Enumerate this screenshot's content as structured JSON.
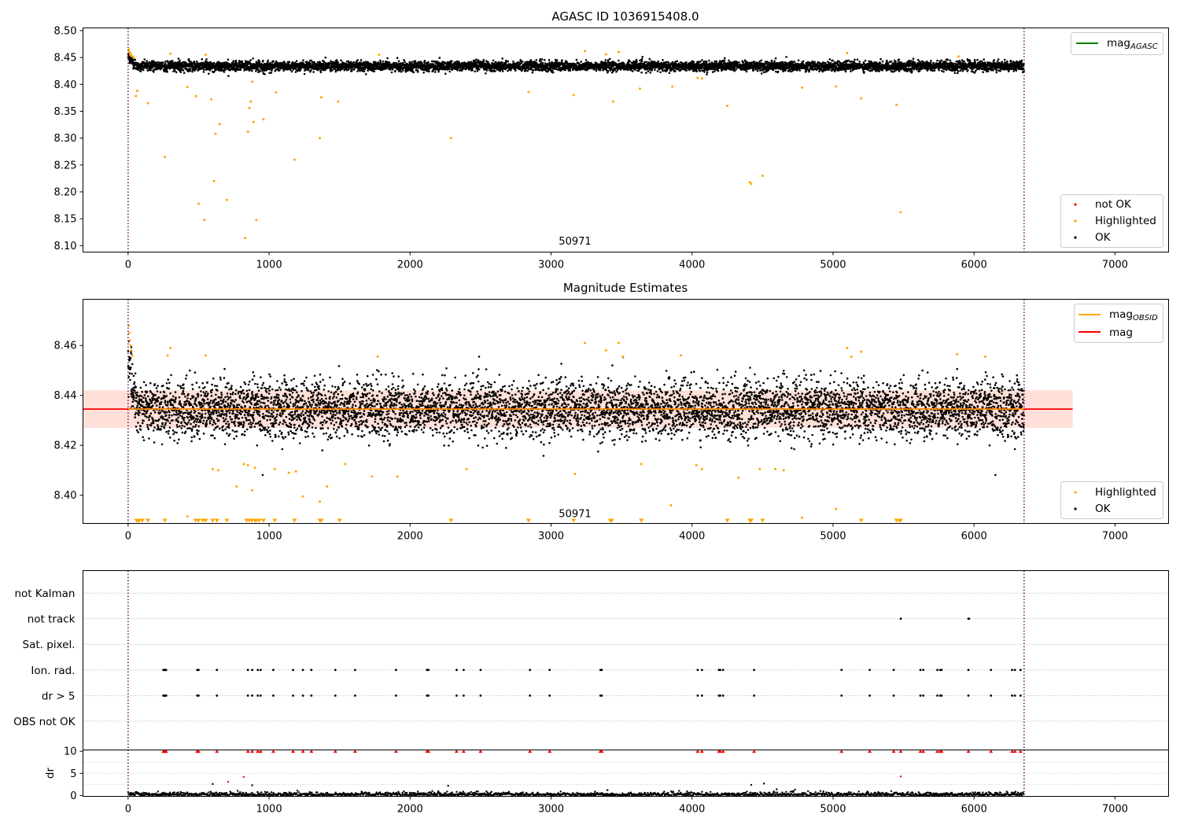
{
  "chart_data": [
    {
      "type": "scatter",
      "title": "AGASC ID 1036915408.0",
      "xlim": [
        -320,
        7380
      ],
      "ylim": [
        8.088,
        8.505
      ],
      "x_ticks": [
        0,
        1000,
        2000,
        3000,
        4000,
        5000,
        6000,
        7000
      ],
      "y_ticks": [
        8.1,
        8.15,
        8.2,
        8.25,
        8.3,
        8.35,
        8.4,
        8.45,
        8.5
      ],
      "obsid_label": {
        "text": "50971",
        "x": 3170,
        "y": 8.108
      },
      "obs_boundaries": [
        0,
        6355
      ],
      "ok_band": {
        "x_range": [
          0,
          6355
        ],
        "center": 8.434,
        "spread": 0.009,
        "early_offset": 0.018
      },
      "series": [
        {
          "name": "OK",
          "color": "#000000",
          "count": 6400
        },
        {
          "name": "Highlighted",
          "color": "#FFA500",
          "points": [
            [
              5,
              8.465
            ],
            [
              10,
              8.46
            ],
            [
              15,
              8.458
            ],
            [
              20,
              8.455
            ],
            [
              30,
              8.452
            ],
            [
              40,
              8.45
            ],
            [
              55,
              8.378
            ],
            [
              65,
              8.388
            ],
            [
              140,
              8.365
            ],
            [
              260,
              8.265
            ],
            [
              300,
              8.457
            ],
            [
              420,
              8.395
            ],
            [
              480,
              8.378
            ],
            [
              500,
              8.178
            ],
            [
              540,
              8.148
            ],
            [
              550,
              8.455
            ],
            [
              590,
              8.372
            ],
            [
              610,
              8.22
            ],
            [
              620,
              8.308
            ],
            [
              650,
              8.326
            ],
            [
              700,
              8.185
            ],
            [
              830,
              8.114
            ],
            [
              850,
              8.312
            ],
            [
              860,
              8.356
            ],
            [
              870,
              8.368
            ],
            [
              880,
              8.405
            ],
            [
              890,
              8.33
            ],
            [
              910,
              8.148
            ],
            [
              960,
              8.335
            ],
            [
              1050,
              8.385
            ],
            [
              1180,
              8.26
            ],
            [
              1360,
              8.3
            ],
            [
              1370,
              8.376
            ],
            [
              1490,
              8.368
            ],
            [
              1780,
              8.455
            ],
            [
              2290,
              8.3
            ],
            [
              2840,
              8.386
            ],
            [
              3160,
              8.38
            ],
            [
              3240,
              8.462
            ],
            [
              3440,
              8.368
            ],
            [
              3630,
              8.392
            ],
            [
              3860,
              8.396
            ],
            [
              4040,
              8.412
            ],
            [
              4070,
              8.411
            ],
            [
              4250,
              8.36
            ],
            [
              4410,
              8.218
            ],
            [
              4420,
              8.215
            ],
            [
              4500,
              8.23
            ],
            [
              4780,
              8.394
            ],
            [
              5020,
              8.396
            ],
            [
              5100,
              8.458
            ],
            [
              5200,
              8.374
            ],
            [
              5450,
              8.362
            ],
            [
              5480,
              8.162
            ],
            [
              5890,
              8.452
            ],
            [
              3480,
              8.46
            ],
            [
              3390,
              8.456
            ]
          ]
        },
        {
          "name": "not OK",
          "color": "#FF0000",
          "points": []
        }
      ],
      "legends": [
        {
          "position": "upper right",
          "entries": [
            {
              "label": "mag",
              "sub": "AGASC",
              "color": "#008000",
              "kind": "line"
            }
          ]
        },
        {
          "position": "lower right",
          "entries": [
            {
              "label": "not OK",
              "color": "#FF0000",
              "kind": "dot"
            },
            {
              "label": "Highlighted",
              "color": "#FFA500",
              "kind": "dot"
            },
            {
              "label": "OK",
              "color": "#000000",
              "kind": "dot"
            }
          ]
        }
      ]
    },
    {
      "type": "scatter",
      "title": "Magnitude Estimates",
      "xlim": [
        -320,
        7380
      ],
      "ylim": [
        8.3887,
        8.4785
      ],
      "x_ticks": [
        0,
        1000,
        2000,
        3000,
        4000,
        5000,
        6000,
        7000
      ],
      "y_ticks": [
        8.4,
        8.42,
        8.44,
        8.46
      ],
      "obsid_label": {
        "text": "50971",
        "x": 3170,
        "y": 8.3925
      },
      "obs_boundaries": [
        0,
        6355
      ],
      "mag": {
        "value": 8.4345,
        "err": 0.0075,
        "x_range": [
          -320,
          6700
        ],
        "color": "#FF0000",
        "fill": "#FFD3C8"
      },
      "mag_obsid": {
        "value": 8.4345,
        "x_range": [
          0,
          6355
        ],
        "color": "#FFA500"
      },
      "series": [
        {
          "name": "OK",
          "color": "#000000",
          "count": 6400
        },
        {
          "name": "Highlighted",
          "color": "#FFA500",
          "points": [
            [
              5,
              8.468
            ],
            [
              8,
              8.465
            ],
            [
              12,
              8.462
            ],
            [
              18,
              8.46
            ],
            [
              24,
              8.458
            ],
            [
              30,
              8.456
            ],
            [
              280,
              8.456
            ],
            [
              300,
              8.459
            ],
            [
              550,
              8.456
            ],
            [
              420,
              8.3915
            ],
            [
              600,
              8.4105
            ],
            [
              640,
              8.41
            ],
            [
              770,
              8.4035
            ],
            [
              820,
              8.4125
            ],
            [
              850,
              8.412
            ],
            [
              880,
              8.402
            ],
            [
              900,
              8.411
            ],
            [
              1040,
              8.4105
            ],
            [
              1140,
              8.409
            ],
            [
              1190,
              8.4095
            ],
            [
              1240,
              8.3995
            ],
            [
              1360,
              8.3975
            ],
            [
              1410,
              8.4035
            ],
            [
              1540,
              8.4125
            ],
            [
              1730,
              8.4075
            ],
            [
              1770,
              8.4555
            ],
            [
              1910,
              8.4075
            ],
            [
              2400,
              8.4105
            ],
            [
              3170,
              8.4085
            ],
            [
              3240,
              8.461
            ],
            [
              3390,
              8.458
            ],
            [
              3480,
              8.461
            ],
            [
              3510,
              8.4555
            ],
            [
              3640,
              8.4125
            ],
            [
              3850,
              8.396
            ],
            [
              3920,
              8.456
            ],
            [
              4030,
              8.412
            ],
            [
              4070,
              8.4105
            ],
            [
              4330,
              8.407
            ],
            [
              4480,
              8.4105
            ],
            [
              4590,
              8.4105
            ],
            [
              4650,
              8.41
            ],
            [
              4780,
              8.391
            ],
            [
              5020,
              8.3945
            ],
            [
              5100,
              8.459
            ],
            [
              5130,
              8.4555
            ],
            [
              5200,
              8.4575
            ],
            [
              5880,
              8.4565
            ],
            [
              6080,
              8.4555
            ]
          ]
        }
      ],
      "below_markers_x": [
        60,
        70,
        80,
        100,
        140,
        260,
        480,
        500,
        530,
        550,
        600,
        630,
        700,
        840,
        860,
        880,
        900,
        910,
        930,
        960,
        1040,
        1180,
        1360,
        1370,
        1500,
        2290,
        2840,
        3160,
        3420,
        3430,
        3640,
        4250,
        4410,
        4420,
        4500,
        5200,
        5450,
        5470,
        5480
      ],
      "legends": [
        {
          "position": "upper right",
          "entries": [
            {
              "label": "mag",
              "sub": "OBSID",
              "color": "#FFA500",
              "kind": "line"
            },
            {
              "label": "mag",
              "sub": "",
              "color": "#FF0000",
              "kind": "line"
            }
          ]
        },
        {
          "position": "lower right",
          "entries": [
            {
              "label": "Highlighted",
              "color": "#FFA500",
              "kind": "dot"
            },
            {
              "label": "OK",
              "color": "#000000",
              "kind": "dot"
            }
          ]
        }
      ]
    },
    {
      "type": "scatter",
      "title": "",
      "xlim": [
        -320,
        7380
      ],
      "categories": [
        "not Kalman",
        "not track",
        "Sat. pixel.",
        "Ion. rad.",
        "dr > 5",
        "OBS not OK"
      ],
      "obs_boundaries": [
        0,
        6355
      ],
      "flags": {
        "not track": [
          5480,
          5960,
          5965
        ],
        "Ion. rad.": [
          250,
          255,
          260,
          265,
          270,
          490,
          500,
          630,
          850,
          880,
          920,
          940,
          1030,
          1170,
          1240,
          1300,
          1470,
          1610,
          1900,
          2120,
          2130,
          2330,
          2380,
          2500,
          2850,
          2990,
          3350,
          3360,
          4040,
          4070,
          4190,
          4200,
          4220,
          4440,
          5060,
          5260,
          5430,
          5620,
          5640,
          5740,
          5760,
          5770,
          5960,
          6120,
          6270,
          6290,
          6330
        ],
        "dr > 5": [
          250,
          255,
          260,
          265,
          270,
          490,
          500,
          630,
          850,
          880,
          920,
          940,
          1030,
          1170,
          1240,
          1300,
          1470,
          1610,
          1900,
          2120,
          2130,
          2330,
          2380,
          2500,
          2850,
          2990,
          3350,
          3360,
          4040,
          4070,
          4190,
          4200,
          4220,
          4440,
          5060,
          5260,
          5430,
          5620,
          5640,
          5740,
          5760,
          5770,
          5960,
          6120,
          6270,
          6290,
          6330
        ]
      }
    },
    {
      "type": "scatter",
      "title": "",
      "xlim": [
        -320,
        7380
      ],
      "ylim": [
        -0.2,
        10.3
      ],
      "ylabel": "dr",
      "x_ticks": [
        0,
        1000,
        2000,
        3000,
        4000,
        5000,
        6000,
        7000
      ],
      "y_ticks": [
        0,
        5,
        10
      ],
      "obs_boundaries": [
        0,
        6355
      ],
      "clipped_markers_x": [
        250,
        255,
        260,
        265,
        270,
        490,
        500,
        630,
        850,
        880,
        920,
        940,
        1030,
        1170,
        1240,
        1300,
        1470,
        1610,
        1900,
        2120,
        2130,
        2330,
        2380,
        2500,
        2850,
        2990,
        3350,
        3360,
        4040,
        4070,
        4190,
        4200,
        4220,
        4440,
        5060,
        5260,
        5430,
        5480,
        5620,
        5640,
        5740,
        5760,
        5770,
        5960,
        6120,
        6270,
        6290,
        6330
      ],
      "outliers": [
        [
          710,
          3.1
        ],
        [
          820,
          4.2
        ],
        [
          5480,
          4.3
        ],
        [
          2270,
          2.2
        ],
        [
          4420,
          2.4
        ],
        [
          4510,
          2.7
        ],
        [
          600,
          2.6
        ],
        [
          880,
          2.3
        ],
        [
          3400,
          1.2
        ],
        [
          4600,
          1.4
        ]
      ],
      "series": [
        {
          "name": "dr",
          "color": "#000000",
          "count": 1800
        }
      ]
    }
  ]
}
